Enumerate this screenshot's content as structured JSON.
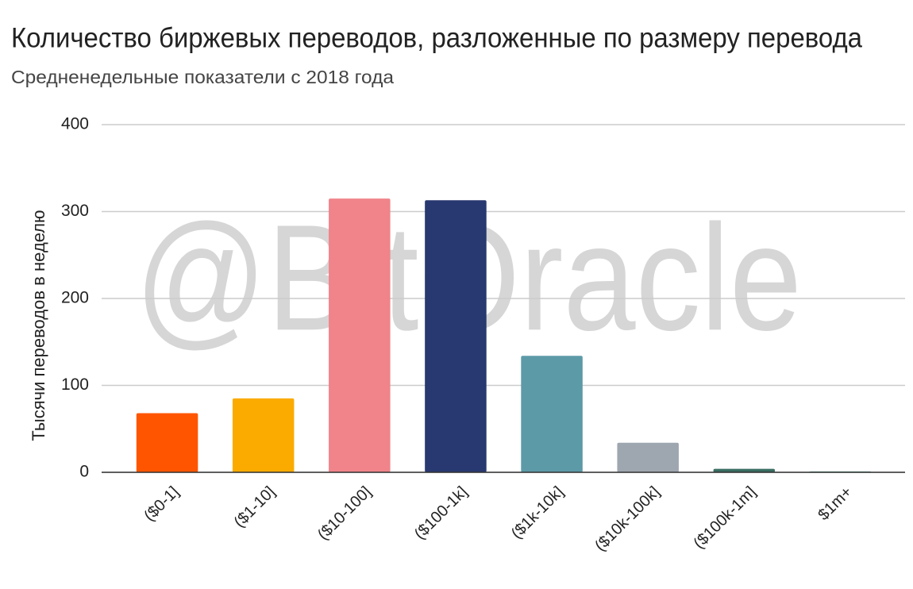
{
  "chart_data": {
    "type": "bar",
    "title": "Количество биржевых переводов, разложенные по размеру перевода",
    "subtitle": "Средненедельные показатели с 2018 года",
    "watermark": "@BitOracle",
    "y_label": "Тысячи переводов в неделю",
    "categories": [
      "($0-1]",
      "($1-10]",
      "($10-100]",
      "($100-1k]",
      "($1k-10k]",
      "($10k-100k]",
      "($100k-1m]",
      "$1m+"
    ],
    "values": [
      68,
      85,
      315,
      313,
      134,
      34,
      4,
      1
    ],
    "colors": [
      "#ff5500",
      "#fbab00",
      "#f0848a",
      "#283870",
      "#5d9aa8",
      "#9ea7b0",
      "#3a6e63",
      "#4f9a8a"
    ],
    "ylim": [
      0,
      400
    ],
    "yticks": [
      0,
      100,
      200,
      300,
      400
    ],
    "grid": true
  }
}
